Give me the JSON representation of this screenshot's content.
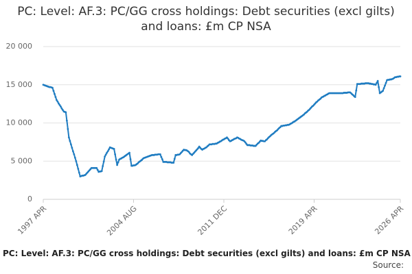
{
  "chart_data": {
    "type": "line",
    "title": "PC: Level: AF.3: PC/GG cross holdings: Debt securities (excl gilts) and loans: £m CP NSA",
    "footer": "PC: Level: AF.3: PC/GG cross holdings: Debt securities (excl gilts) and loans: £m CP NSA",
    "source_label": "Source:",
    "ylim": [
      0,
      20000
    ],
    "yticks": [
      0,
      {
        "value": 5000,
        "label": "5 000"
      },
      {
        "value": 10000,
        "label": "10 000"
      },
      {
        "value": 15000,
        "label": "15 000"
      },
      {
        "value": 20000,
        "label": "20 000"
      }
    ],
    "grid": true,
    "categories": [
      "1997 APR",
      null,
      null,
      null,
      null,
      null,
      null,
      null,
      null,
      null,
      null,
      null,
      null,
      null,
      null,
      null,
      null,
      null,
      null,
      null,
      null,
      null,
      null,
      null,
      null,
      null,
      null,
      null,
      null,
      null,
      null,
      null,
      null,
      null,
      null,
      null,
      null,
      null,
      null,
      null,
      null,
      null,
      null,
      null,
      null,
      null,
      null,
      null,
      null,
      null,
      null,
      null,
      null,
      null,
      null,
      null,
      null,
      null,
      null,
      null,
      null,
      null,
      null,
      null,
      null,
      null,
      null,
      null,
      null,
      null,
      null,
      null,
      null,
      null,
      null,
      null,
      null,
      null,
      null,
      null,
      null,
      null,
      null,
      null,
      null,
      null,
      null,
      null,
      "2004 AUG",
      null,
      null,
      null,
      null,
      null,
      null,
      null,
      null,
      null,
      null,
      null,
      null,
      null,
      null,
      null,
      null,
      null,
      null,
      null,
      null,
      null,
      null,
      null,
      null,
      null,
      null,
      null,
      null,
      null,
      null,
      null,
      null,
      null,
      null,
      null,
      null,
      null,
      null,
      null,
      null,
      null,
      null,
      null,
      null,
      null,
      null,
      null,
      null,
      null,
      null,
      null,
      null,
      null,
      null,
      null,
      null,
      null,
      null,
      null,
      null,
      null,
      null,
      null,
      null,
      null,
      null,
      null,
      null,
      null,
      null,
      null,
      null,
      null,
      null,
      null,
      null,
      null,
      null,
      null,
      null,
      null,
      null,
      null,
      null,
      null,
      null,
      null,
      "2011 DEC",
      null,
      null,
      null,
      null,
      null,
      null,
      null,
      null,
      null,
      null,
      null,
      null,
      null,
      null,
      null,
      null,
      null,
      null,
      null,
      null,
      null,
      null,
      null,
      null,
      null,
      null,
      null,
      null,
      null,
      null,
      null,
      null,
      null,
      null,
      null,
      null,
      null,
      null,
      null,
      null,
      null,
      null,
      null,
      null,
      null,
      null,
      null,
      null,
      null,
      null,
      null,
      null,
      null,
      null,
      null,
      null,
      null,
      null,
      null,
      null,
      null,
      null,
      null,
      null,
      null,
      null,
      null,
      null,
      null,
      null,
      null,
      null,
      null,
      null,
      null,
      null,
      null,
      null,
      null,
      null,
      null,
      null,
      null,
      null,
      null,
      null,
      null,
      "2019 APR",
      null,
      null,
      null,
      null,
      null,
      null,
      null,
      null,
      null,
      null,
      null,
      null,
      null,
      null,
      null,
      null,
      null,
      null,
      null,
      null,
      null,
      null,
      null,
      null,
      null,
      null,
      null,
      null,
      null,
      null,
      null,
      null,
      null,
      null,
      null,
      null,
      null,
      null,
      null,
      null,
      null,
      null,
      null,
      null,
      null,
      null,
      null,
      null,
      null,
      null,
      null,
      null,
      null,
      null,
      null,
      null,
      null,
      null,
      null,
      null,
      null,
      null,
      null,
      null,
      null,
      null,
      null,
      null,
      null,
      null,
      null,
      null,
      null,
      null,
      null,
      null,
      null,
      null,
      null,
      null,
      null,
      null,
      null,
      "2026 APR"
    ],
    "series": [
      {
        "color": "#1f7cc1",
        "values": [
          15000,
          14950,
          14900,
          14850,
          14800,
          14750,
          14700,
          14700,
          14650,
          14600,
          14200,
          13800,
          13400,
          13000,
          12800,
          12550,
          12350,
          12150,
          11900,
          11700,
          11500,
          11450,
          11400,
          10300,
          9200,
          8100,
          7650,
          7200,
          6750,
          6300,
          5900,
          5450,
          5000,
          4500,
          4000,
          3500,
          3000,
          3050,
          3100,
          3100,
          3150,
          3200,
          3350,
          3500,
          3650,
          3800,
          3950,
          4100,
          4100,
          4100,
          4100,
          4100,
          4100,
          3850,
          3600,
          3650,
          3650,
          3700,
          4350,
          4950,
          5600,
          5850,
          6100,
          6300,
          6550,
          6800,
          6750,
          6700,
          6650,
          6600,
          5900,
          5200,
          4500,
          4850,
          5200,
          5300,
          5350,
          5450,
          5500,
          5600,
          5700,
          5800,
          5900,
          6000,
          6100,
          5250,
          4400,
          4400,
          4450,
          4450,
          4500,
          4600,
          4700,
          4850,
          4950,
          5050,
          5150,
          5300,
          5400,
          5450,
          5500,
          5550,
          5600,
          5650,
          5700,
          5750,
          5800,
          5800,
          5800,
          5850,
          5850,
          5850,
          5900,
          5900,
          5900,
          5550,
          5250,
          4900,
          4900,
          4900,
          4900,
          4850,
          4850,
          4850,
          4850,
          4800,
          4800,
          4800,
          5300,
          5800,
          5800,
          5850,
          5850,
          5900,
          6050,
          6200,
          6350,
          6500,
          6450,
          6450,
          6400,
          6300,
          6200,
          6000,
          5900,
          5800,
          5950,
          6100,
          6250,
          6400,
          6550,
          6700,
          6900,
          6750,
          6600,
          6500,
          6600,
          6650,
          6750,
          6800,
          6950,
          7050,
          7200,
          7200,
          7200,
          7250,
          7250,
          7250,
          7300,
          7300,
          7400,
          7450,
          7550,
          7600,
          7700,
          7800,
          7850,
          7950,
          8000,
          8100,
          7950,
          7750,
          7600,
          7650,
          7750,
          7800,
          7900,
          7950,
          8000,
          8100,
          8050,
          7950,
          7900,
          7800,
          7750,
          7700,
          7600,
          7450,
          7250,
          7100,
          7100,
          7100,
          7050,
          7050,
          7050,
          7000,
          7000,
          7000,
          7150,
          7300,
          7400,
          7550,
          7700,
          7650,
          7650,
          7600,
          7600,
          7750,
          7850,
          8000,
          8150,
          8250,
          8400,
          8500,
          8600,
          8700,
          8850,
          8950,
          9050,
          9200,
          9350,
          9450,
          9600,
          9600,
          9650,
          9650,
          9700,
          9700,
          9750,
          9750,
          9800,
          9900,
          9950,
          10050,
          10150,
          10200,
          10300,
          10400,
          10500,
          10600,
          10700,
          10800,
          10900,
          11000,
          11100,
          11250,
          11350,
          11450,
          11600,
          11700,
          11850,
          12000,
          12150,
          12250,
          12400,
          12550,
          12700,
          12800,
          12950,
          13050,
          13150,
          13300,
          13400,
          13450,
          13550,
          13600,
          13700,
          13750,
          13850,
          13900,
          13900,
          13900,
          13900,
          13900,
          13900,
          13900,
          13900,
          13900,
          13900,
          13900,
          13900,
          13900,
          13900,
          13950,
          13950,
          13950,
          13950,
          14000,
          14000,
          14000,
          13900,
          13750,
          13650,
          13500,
          13400,
          14250,
          15100,
          15100,
          15100,
          15100,
          15150,
          15150,
          15150,
          15150,
          15200,
          15200,
          15200,
          15200,
          15150,
          15150,
          15100,
          15100,
          15050,
          15050,
          15000,
          15250,
          15500,
          14700,
          13900,
          14000,
          14100,
          14200,
          14550,
          14900,
          15250,
          15600,
          15650,
          15650,
          15700,
          15700,
          15750,
          15800,
          15900,
          16000,
          16000,
          16050,
          16050,
          16100,
          16100
        ]
      }
    ]
  }
}
